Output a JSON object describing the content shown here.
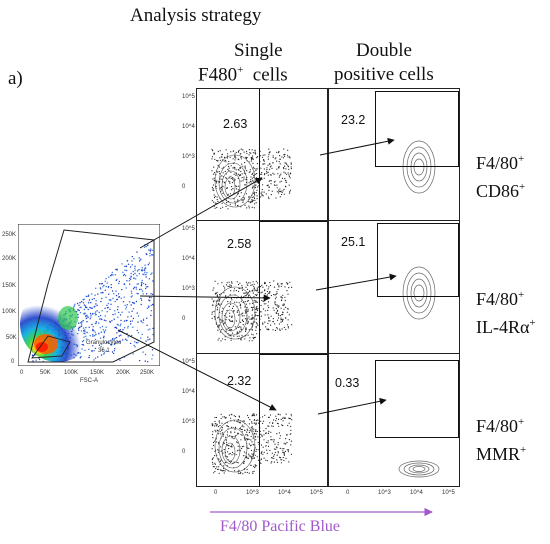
{
  "title": "Analysis strategy",
  "figure_label": "a)",
  "columns": {
    "left": [
      "Single",
      "F480",
      "+",
      "cells"
    ],
    "right": [
      "Double",
      "positive cells"
    ]
  },
  "rows": [
    {
      "label_line1": "F4/80",
      "sup1": "+",
      "label_line2": "CD86",
      "sup2": "+",
      "single_pct": "2.63",
      "double_pct": "23.2"
    },
    {
      "label_line1": "F4/80",
      "sup1": "+",
      "label_line2": "IL-4Rα",
      "sup2": "+",
      "single_pct": "2.58",
      "double_pct": "25.1"
    },
    {
      "label_line1": "F4/80",
      "sup1": "+",
      "label_line2": "MMR",
      "sup2": "+",
      "single_pct": "2.32",
      "double_pct": "0.33"
    }
  ],
  "gating_plot": {
    "gate_label": "Granulocytes",
    "gate_value": "36.1",
    "x_axis_label": "FSC-A",
    "x_ticks": [
      "0",
      "50K",
      "100K",
      "150K",
      "200K",
      "250K"
    ],
    "y_ticks": [
      "250K",
      "200K",
      "150K",
      "100K",
      "50K",
      "0"
    ]
  },
  "y_ticks_log": [
    "10^5",
    "10^4",
    "10^3",
    "0"
  ],
  "x_ticks_log": [
    "0",
    "10^3",
    "10^4",
    "10^5"
  ],
  "x_axis_label": "F4/80 Pacific Blue",
  "colors": {
    "accent_purple": "#a05ac8",
    "gate_line": "#111111"
  }
}
